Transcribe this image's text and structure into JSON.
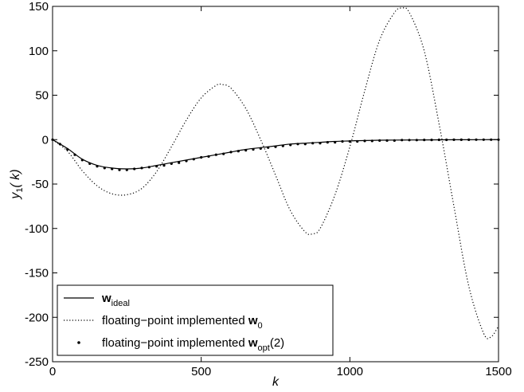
{
  "chart_data": {
    "type": "line",
    "title": "",
    "xlabel": "k",
    "ylabel": {
      "main": "y",
      "sub": "1",
      "rest": "( k)"
    },
    "xlim": [
      0,
      1500
    ],
    "ylim": [
      -250,
      150
    ],
    "xticks": [
      0,
      500,
      1000,
      1500
    ],
    "yticks": [
      -250,
      -200,
      -150,
      -100,
      -50,
      0,
      50,
      100,
      150
    ],
    "grid": false,
    "legend_position": "bottom-left",
    "series": [
      {
        "name": {
          "prefix": "",
          "symbol": "w",
          "sub": "ideal",
          "suffix": ""
        },
        "style": "solid",
        "color": "#000000",
        "x": [
          0,
          50,
          100,
          150,
          200,
          250,
          300,
          350,
          400,
          450,
          500,
          550,
          600,
          650,
          700,
          750,
          800,
          850,
          900,
          950,
          1000,
          1050,
          1100,
          1150,
          1200,
          1250,
          1300,
          1350,
          1400,
          1450,
          1500
        ],
        "y": [
          0,
          -10,
          -22,
          -29,
          -32,
          -33,
          -32,
          -29,
          -26,
          -23,
          -20,
          -17,
          -14,
          -11,
          -9,
          -7,
          -5,
          -4,
          -3,
          -2,
          -1.5,
          -1,
          -0.7,
          -0.5,
          -0.4,
          -0.3,
          -0.2,
          -0.1,
          -0.1,
          0,
          0
        ]
      },
      {
        "name": {
          "prefix": "floating−point implemented  ",
          "symbol": "w",
          "sub": "0",
          "suffix": ""
        },
        "style": "dotted",
        "color": "#000000",
        "x": [
          0,
          50,
          100,
          150,
          200,
          250,
          300,
          350,
          400,
          450,
          500,
          550,
          570,
          600,
          650,
          700,
          750,
          800,
          850,
          875,
          900,
          950,
          1000,
          1050,
          1100,
          1150,
          1175,
          1200,
          1250,
          1300,
          1350,
          1400,
          1450,
          1475,
          1500
        ],
        "y": [
          0,
          -13,
          -35,
          -52,
          -61,
          -62,
          -55,
          -36,
          -8,
          22,
          47,
          61,
          62,
          58,
          35,
          0,
          -40,
          -80,
          -104,
          -106,
          -100,
          -62,
          -8,
          55,
          112,
          143,
          148,
          143,
          100,
          18,
          -75,
          -165,
          -218,
          -222,
          -210
        ]
      },
      {
        "name": {
          "prefix": "floating−point implemented  ",
          "symbol": "w",
          "sub": "opt",
          "suffix": "(2)"
        },
        "style": "markers",
        "color": "#000000",
        "x": [
          0,
          25,
          50,
          75,
          100,
          125,
          150,
          175,
          200,
          225,
          250,
          275,
          300,
          325,
          350,
          375,
          400,
          425,
          450,
          475,
          500,
          525,
          550,
          575,
          600,
          625,
          650,
          675,
          700,
          725,
          750,
          775,
          800,
          825,
          850,
          875,
          900,
          925,
          950,
          975,
          1000,
          1025,
          1050,
          1075,
          1100,
          1125,
          1150,
          1175,
          1200,
          1225,
          1250,
          1275,
          1300,
          1325,
          1350,
          1375,
          1400,
          1425,
          1450,
          1475,
          1500
        ],
        "y": [
          0,
          -5,
          -11,
          -17,
          -23,
          -27,
          -30,
          -32,
          -33,
          -34,
          -34,
          -33,
          -32,
          -31,
          -30,
          -29,
          -27,
          -26,
          -24,
          -22,
          -20,
          -19,
          -17,
          -16,
          -14,
          -13,
          -12,
          -11,
          -10,
          -9,
          -8,
          -7,
          -6,
          -5,
          -5,
          -4,
          -4,
          -3,
          -3,
          -2,
          -2,
          -2,
          -1.5,
          -1.5,
          -1,
          -1,
          -1,
          -0.5,
          -0.5,
          -0.5,
          -0.3,
          -0.3,
          -0.2,
          -0.2,
          -0.1,
          -0.1,
          -0.1,
          0,
          0,
          0,
          0
        ]
      }
    ]
  }
}
